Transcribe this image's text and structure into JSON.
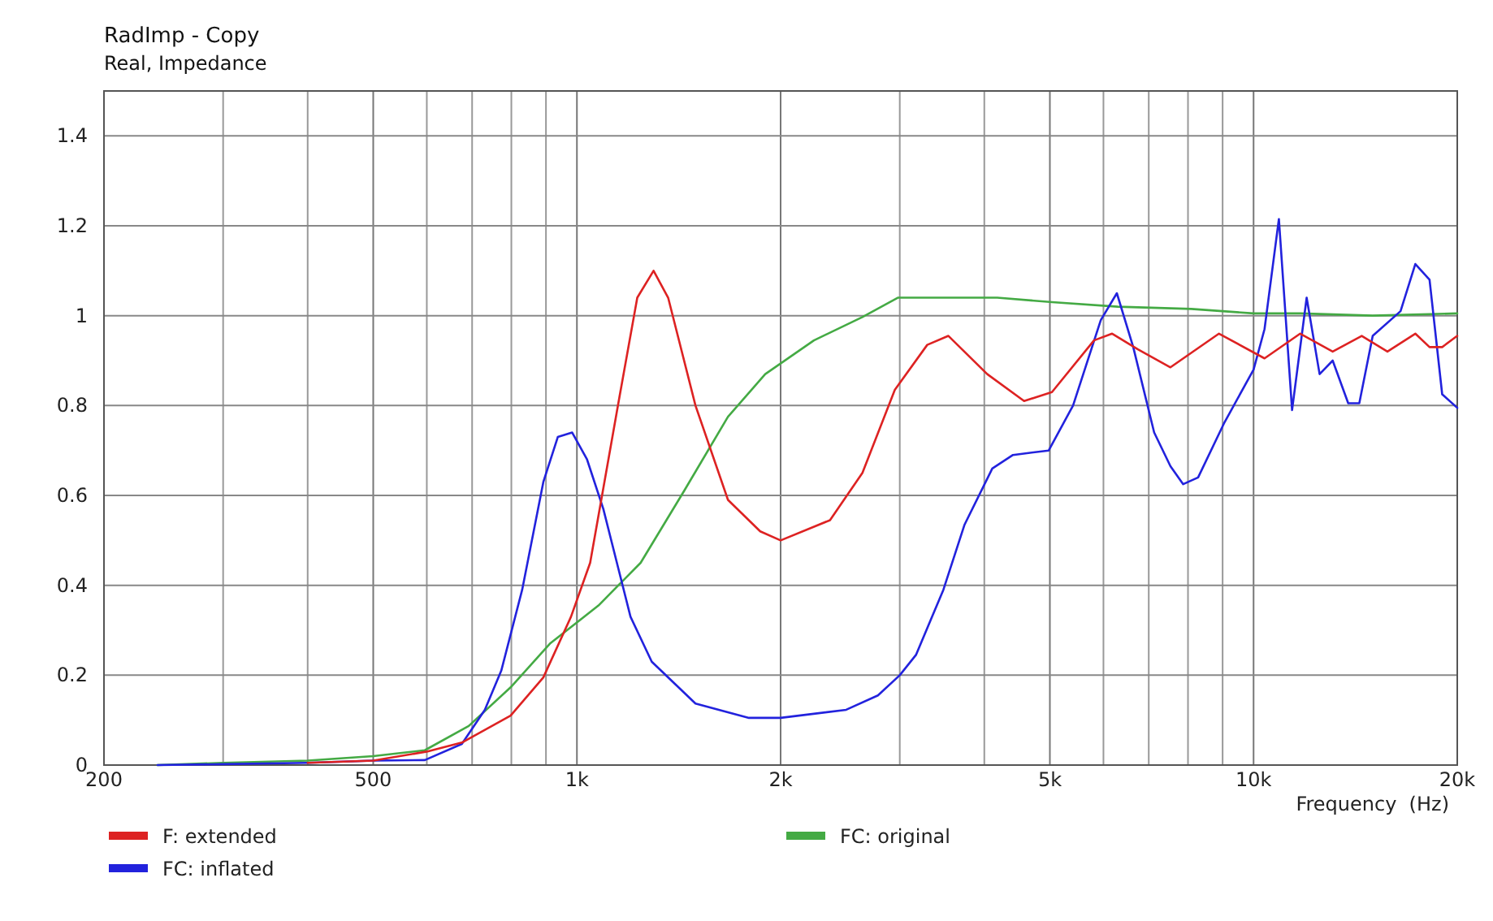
{
  "chart_data": {
    "type": "line",
    "title": "RadImp - Copy",
    "subtitle": "Real, Impedance",
    "xlabel": "Frequency  (Hz)",
    "log": "x",
    "grid": true,
    "legend": "bottom",
    "line_style": "solid",
    "marker": "none",
    "xlim": [
      200,
      20000
    ],
    "ylim": [
      0,
      1.5
    ],
    "xticks": [
      200,
      {
        "value": 300,
        "label": null
      },
      {
        "value": 400,
        "label": null
      },
      500,
      {
        "value": 600,
        "label": null
      },
      {
        "value": 700,
        "label": null
      },
      {
        "value": 800,
        "label": null
      },
      {
        "value": 900,
        "label": null
      },
      {
        "value": 1000,
        "label": "1k"
      },
      {
        "value": 2000,
        "label": "2k"
      },
      {
        "value": 3000,
        "label": null
      },
      {
        "value": 4000,
        "label": null
      },
      {
        "value": 5000,
        "label": "5k"
      },
      {
        "value": 6000,
        "label": null
      },
      {
        "value": 7000,
        "label": null
      },
      {
        "value": 8000,
        "label": null
      },
      {
        "value": 9000,
        "label": null
      },
      {
        "value": 10000,
        "label": "10k"
      },
      {
        "value": 20000,
        "label": "20k"
      }
    ],
    "yticks": [
      0,
      0.2,
      0.4,
      0.6,
      0.8,
      1,
      1.2,
      1.4
    ],
    "series": [
      {
        "name": "F: extended",
        "color": "#dd2222",
        "x": [
          400,
          500,
          600,
          676,
          798,
          892,
          980,
          1046,
          1156,
          1228,
          1298,
          1364,
          1497,
          1672,
          1866,
          2000,
          2366,
          2642,
          2950,
          3294,
          3540,
          4040,
          4580,
          5036,
          5810,
          6180,
          6746,
          7536,
          8890,
          10380,
          11720,
          13090,
          14450,
          15770,
          17340,
          18200,
          19000,
          20000
        ],
        "values": [
          0.005,
          0.01,
          0.03,
          0.05,
          0.11,
          0.195,
          0.33,
          0.45,
          0.82,
          1.04,
          1.1,
          1.04,
          0.8,
          0.59,
          0.52,
          0.5,
          0.545,
          0.65,
          0.835,
          0.935,
          0.955,
          0.87,
          0.81,
          0.83,
          0.945,
          0.96,
          0.925,
          0.885,
          0.96,
          0.905,
          0.96,
          0.92,
          0.955,
          0.92,
          0.96,
          0.93,
          0.93,
          0.955
        ]
      },
      {
        "name": "FC: inflated",
        "color": "#2222dd",
        "x": [
          240,
          300,
          400,
          500,
          596,
          676,
          731,
          773,
          830,
          892,
          937,
          984,
          1035,
          1094,
          1200,
          1290,
          1497,
          1796,
          2000,
          2500,
          2785,
          3000,
          3170,
          3480,
          3740,
          4110,
          4410,
          4980,
          5410,
          5946,
          6280,
          6640,
          7130,
          7536,
          7870,
          8280,
          9040,
          10000,
          10380,
          10900,
          11400,
          11980,
          12520,
          13090,
          13800,
          14330,
          15000,
          16490,
          17340,
          18200,
          19000,
          20000
        ],
        "values": [
          0,
          0.002,
          0.005,
          0.01,
          0.011,
          0.047,
          0.123,
          0.21,
          0.39,
          0.63,
          0.73,
          0.74,
          0.68,
          0.57,
          0.33,
          0.23,
          0.137,
          0.105,
          0.105,
          0.123,
          0.155,
          0.2,
          0.245,
          0.39,
          0.535,
          0.66,
          0.69,
          0.7,
          0.8,
          0.99,
          1.05,
          0.93,
          0.74,
          0.665,
          0.625,
          0.64,
          0.76,
          0.88,
          0.97,
          1.215,
          0.79,
          1.04,
          0.87,
          0.9,
          0.805,
          0.805,
          0.955,
          1.01,
          1.115,
          1.08,
          0.825,
          0.795
        ]
      },
      {
        "name": "FC: original",
        "color": "#44aa44",
        "x": [
          240,
          300,
          400,
          500,
          596,
          692,
          798,
          912,
          1076,
          1242,
          1440,
          1672,
          1898,
          2240,
          2642,
          2980,
          3480,
          4180,
          5036,
          6300,
          8090,
          10000,
          11720,
          15000,
          20000
        ],
        "values": [
          0,
          0.005,
          0.01,
          0.02,
          0.033,
          0.087,
          0.173,
          0.27,
          0.355,
          0.45,
          0.61,
          0.775,
          0.87,
          0.945,
          0.997,
          1.04,
          1.04,
          1.04,
          1.03,
          1.02,
          1.015,
          1.005,
          1.005,
          1,
          1.005
        ]
      }
    ]
  }
}
